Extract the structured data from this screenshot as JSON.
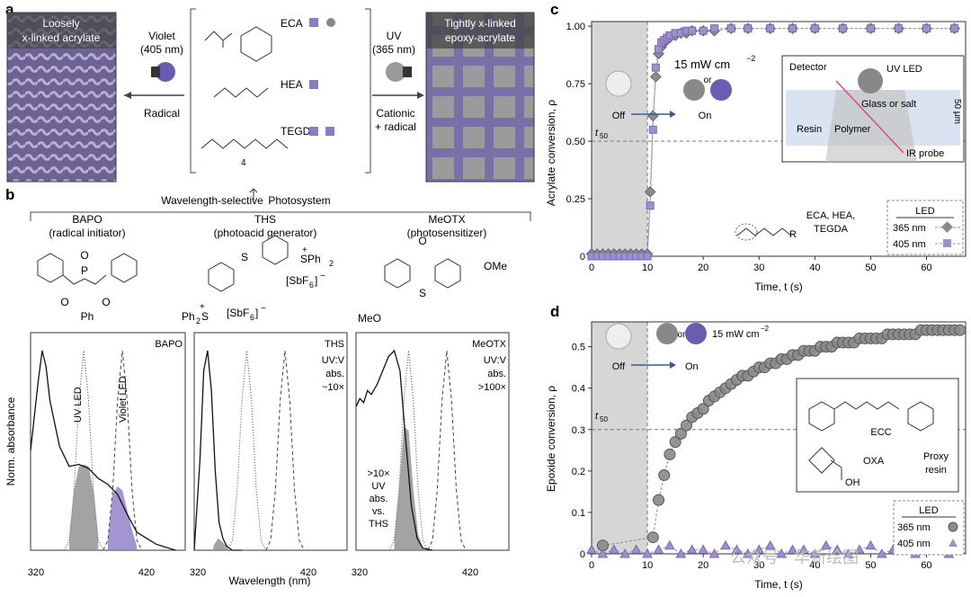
{
  "panels": {
    "a": {
      "letter": "a",
      "left_box_label": [
        "Loosely",
        "x-linked acrylate"
      ],
      "right_box_label": [
        "Tightly x-linked",
        "epoxy-acrylate"
      ],
      "violet_label": [
        "Violet",
        "(405 nm)"
      ],
      "uv_label": [
        "UV",
        "(365 nm)"
      ],
      "radical_label": "Radical",
      "cationic_label": [
        "Cationic",
        "+ radical"
      ],
      "monomers": [
        "ECA",
        "HEA",
        "TEGDA"
      ],
      "subscript_4": "4"
    },
    "b": {
      "letter": "b",
      "photosystem_label": "Wavelength-selective",
      "photosystem_label2": "Photosystem",
      "compounds": [
        {
          "name": "BAPO",
          "role": "(radical initiator)"
        },
        {
          "name": "THS",
          "role": "(photoacid generator)"
        },
        {
          "name": "MeOTX",
          "role": "(photosensitizer)"
        }
      ],
      "chem_labels": {
        "P": "P",
        "O": "O",
        "Ph": "Ph",
        "S": "S",
        "SPh2": "SPh",
        "sub2": "2",
        "SbF6": "[SbF",
        "sub6": "6",
        "bracket": "]",
        "minus": "−",
        "plus": "+",
        "Ph2S": "Ph",
        "OMe": "OMe",
        "MeO": "MeO"
      },
      "ylabel": "Norm. absorbance",
      "xlabel": "Wavelength (nm)",
      "uv_led": "UV LED",
      "violet_led": "Violet LED",
      "spectra_titles": [
        "BAPO",
        "THS",
        "MeOTX"
      ],
      "ths_note": [
        "UV:V",
        "abs.",
        "~10×"
      ],
      "meotx_note": [
        "UV:V",
        "abs.",
        ">100×"
      ],
      "meotx_inner": [
        ">10×",
        "UV",
        "abs.",
        "vs.",
        "THS"
      ],
      "xticks": [
        "320",
        "420",
        "320",
        "420",
        "320",
        "420"
      ]
    },
    "c": {
      "letter": "c",
      "ylabel": "Acrylate conversion, ρ",
      "xlabel": "Time, t (s)",
      "t50": "t",
      "t50_sub": "50",
      "power": "15 mW cm",
      "power_exp": "−2",
      "off": "Off",
      "on": "On",
      "or": "or",
      "inset": {
        "detector": "Detector",
        "uv_led": "UV LED",
        "glass": "Glass or salt",
        "resin": "Resin",
        "polymer": "Polymer",
        "ir": "IR probe",
        "thickness": "50 μm"
      },
      "monomer_note": [
        "ECA, HEA,",
        "TEGDA"
      ],
      "R": "R",
      "legend": {
        "title": "LED",
        "items": [
          "365 nm",
          "405 nm"
        ]
      }
    },
    "d": {
      "letter": "d",
      "ylabel": "Epoxide conversion, ρ",
      "xlabel": "Time, t (s)",
      "t50": "t",
      "t50_sub": "50",
      "power": "15 mW cm",
      "power_exp": "−2",
      "off": "Off",
      "on": "On",
      "or": "or",
      "inset": {
        "ecc": "ECC",
        "oxa": "OXA",
        "proxy": [
          "Proxy",
          "resin"
        ],
        "oh": "OH"
      },
      "legend": {
        "title": "LED",
        "items": [
          "365 nm",
          "405 nm"
        ]
      }
    }
  },
  "watermark": "公众号 · 华新绘图",
  "chart_data": [
    {
      "type": "scatter",
      "panel": "c",
      "xlabel": "Time, t (s)",
      "ylabel": "Acrylate conversion, ρ",
      "xlim": [
        0,
        67
      ],
      "ylim": [
        0,
        1.02
      ],
      "xticks": [
        0,
        10,
        20,
        30,
        40,
        50,
        60
      ],
      "yticks": [
        0,
        0.25,
        0.5,
        0.75,
        1.0
      ],
      "ytick_labels": [
        "0",
        "0.25",
        "0.50",
        "0.75",
        "1.00"
      ],
      "light_off_until": 10,
      "t50_y": 0.5,
      "series": [
        {
          "name": "365 nm",
          "color": "#8a8a8a",
          "marker": "diamond",
          "x": [
            0,
            1,
            2,
            3,
            4,
            5,
            6,
            7,
            8,
            9,
            10,
            10.5,
            11,
            11.5,
            12,
            12.5,
            13,
            13.5,
            14,
            15,
            16,
            17,
            18,
            20,
            22,
            25,
            28,
            32,
            36,
            40,
            45,
            50,
            55,
            60,
            65
          ],
          "y": [
            0.01,
            0.01,
            0.01,
            0.01,
            0.01,
            0.01,
            0.01,
            0.01,
            0.01,
            0.01,
            0.01,
            0.28,
            0.61,
            0.78,
            0.88,
            0.91,
            0.93,
            0.94,
            0.95,
            0.96,
            0.97,
            0.97,
            0.98,
            0.98,
            0.98,
            0.99,
            0.99,
            0.99,
            0.99,
            0.99,
            0.99,
            0.99,
            0.99,
            0.99,
            0.99
          ]
        },
        {
          "name": "405 nm",
          "color": "#9f8fcf",
          "marker": "square",
          "x": [
            0,
            1,
            2,
            3,
            4,
            5,
            6,
            7,
            8,
            9,
            10,
            10.5,
            11,
            11.5,
            12,
            12.5,
            13,
            13.5,
            14,
            15,
            16,
            17,
            18,
            20,
            22,
            25,
            28,
            32,
            36,
            40,
            45,
            50,
            55,
            60,
            65
          ],
          "y": [
            0.0,
            0.0,
            0.0,
            0.0,
            0.0,
            0.0,
            0.0,
            0.0,
            0.0,
            0.0,
            0.0,
            0.22,
            0.55,
            0.82,
            0.9,
            0.93,
            0.94,
            0.95,
            0.96,
            0.97,
            0.97,
            0.98,
            0.98,
            0.98,
            0.99,
            0.99,
            0.99,
            0.99,
            0.99,
            0.99,
            0.99,
            0.99,
            0.99,
            0.99,
            0.99
          ]
        }
      ]
    },
    {
      "type": "scatter",
      "panel": "d",
      "xlabel": "Time, t (s)",
      "ylabel": "Epoxide conversion, ρ",
      "xlim": [
        0,
        67
      ],
      "ylim": [
        0,
        0.56
      ],
      "xticks": [
        0,
        10,
        20,
        30,
        40,
        50,
        60
      ],
      "yticks": [
        0,
        0.1,
        0.2,
        0.3,
        0.4,
        0.5
      ],
      "ytick_labels": [
        "0",
        "0.1",
        "0.2",
        "0.3",
        "0.4",
        "0.5"
      ],
      "light_off_until": 10,
      "t50_y": 0.3,
      "series": [
        {
          "name": "365 nm",
          "color": "#8a8a8a",
          "marker": "circle",
          "x": [
            2,
            11,
            12,
            13,
            14,
            15,
            16,
            17,
            18,
            19,
            20,
            21,
            22,
            23,
            24,
            25,
            26,
            27,
            28,
            29,
            30,
            31,
            32,
            33,
            34,
            35,
            36,
            37,
            38,
            39,
            40,
            41,
            42,
            43,
            44,
            45,
            46,
            47,
            48,
            49,
            50,
            51,
            52,
            53,
            54,
            55,
            56,
            57,
            58,
            59,
            60,
            61,
            62,
            63,
            64,
            65,
            66
          ],
          "y": [
            0.02,
            0.04,
            0.13,
            0.19,
            0.24,
            0.27,
            0.29,
            0.31,
            0.33,
            0.34,
            0.35,
            0.37,
            0.38,
            0.39,
            0.4,
            0.41,
            0.42,
            0.43,
            0.43,
            0.44,
            0.45,
            0.45,
            0.46,
            0.46,
            0.47,
            0.47,
            0.48,
            0.48,
            0.49,
            0.49,
            0.49,
            0.5,
            0.5,
            0.5,
            0.51,
            0.51,
            0.51,
            0.51,
            0.52,
            0.52,
            0.52,
            0.52,
            0.52,
            0.53,
            0.53,
            0.53,
            0.53,
            0.53,
            0.53,
            0.54,
            0.54,
            0.54,
            0.54,
            0.54,
            0.54,
            0.54,
            0.54
          ]
        },
        {
          "name": "405 nm",
          "color": "#9f8fcf",
          "marker": "triangle",
          "x": [
            0,
            2,
            4,
            6,
            8,
            10,
            12,
            14,
            16,
            18,
            20,
            22,
            24,
            26,
            28,
            30,
            32,
            34,
            36,
            38,
            40,
            42,
            44,
            46,
            48,
            50,
            52,
            54,
            56,
            58,
            60,
            62,
            64,
            66
          ],
          "y": [
            0.01,
            0.0,
            0.01,
            0.0,
            0.01,
            0.0,
            0.01,
            0.02,
            0.0,
            0.01,
            0.01,
            0.0,
            0.02,
            0.01,
            0.0,
            0.01,
            0.02,
            0.0,
            0.01,
            0.01,
            0.0,
            0.02,
            0.01,
            0.0,
            0.01,
            0.02,
            0.0,
            0.01,
            0.01,
            0.0,
            0.02,
            0.01,
            0.0,
            0.01
          ]
        }
      ]
    },
    {
      "type": "area",
      "panel": "b",
      "xlabel": "Wavelength (nm)",
      "ylabel": "Norm. absorbance",
      "xlim": [
        310,
        470
      ],
      "xticks": [
        320,
        420
      ],
      "series": [
        {
          "name": "BAPO",
          "x": [
            310,
            318,
            322,
            326,
            330,
            340,
            350,
            360,
            370,
            380,
            390,
            400,
            410,
            420,
            440,
            460
          ],
          "y": [
            0.5,
            0.85,
            1.0,
            0.92,
            0.75,
            0.52,
            0.42,
            0.43,
            0.41,
            0.36,
            0.33,
            0.28,
            0.18,
            0.09,
            0.03,
            0.0
          ]
        },
        {
          "name": "THS",
          "x": [
            310,
            316,
            320,
            324,
            328,
            332,
            336,
            340,
            344,
            350,
            360
          ],
          "y": [
            0.0,
            0.45,
            0.9,
            1.0,
            0.8,
            0.4,
            0.14,
            0.06,
            0.02,
            0.0,
            0.0
          ]
        },
        {
          "name": "MeOTX",
          "x": [
            310,
            314,
            318,
            322,
            326,
            332,
            338,
            344,
            350,
            356,
            362,
            368,
            374,
            380,
            390
          ],
          "y": [
            0.72,
            0.76,
            0.74,
            0.8,
            0.78,
            0.83,
            0.9,
            0.97,
            1.0,
            0.9,
            0.55,
            0.22,
            0.06,
            0.01,
            0.0
          ]
        },
        {
          "name": "UV LED",
          "x": [
            345,
            350,
            355,
            360,
            365,
            370,
            375,
            380,
            385
          ],
          "y": [
            0.0,
            0.05,
            0.3,
            0.75,
            1.0,
            0.75,
            0.3,
            0.05,
            0.0
          ]
        },
        {
          "name": "Violet LED",
          "x": [
            385,
            390,
            395,
            400,
            405,
            410,
            415,
            420,
            425
          ],
          "y": [
            0.0,
            0.05,
            0.3,
            0.75,
            1.0,
            0.75,
            0.3,
            0.05,
            0.0
          ]
        }
      ]
    }
  ]
}
